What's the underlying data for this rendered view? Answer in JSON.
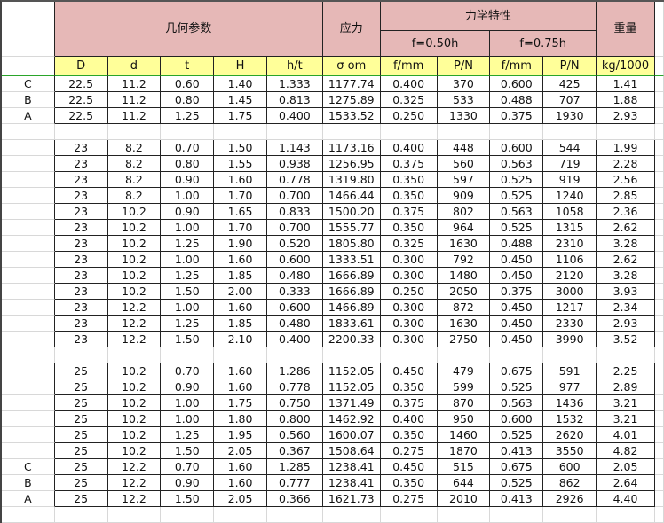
{
  "header": {
    "geometry": "几何参数",
    "stress": "应力",
    "mechanics": "力学特性",
    "f050": "f=0.50h",
    "f075": "f=0.75h",
    "weight": "重量"
  },
  "columns": [
    "D",
    "d",
    "t",
    "H",
    "h/t",
    "σ om",
    "f/mm",
    "P/N",
    "f/mm",
    "P/N",
    "kg/1000"
  ],
  "groups": [
    {
      "rows": [
        {
          "label": "C",
          "values": [
            "22.5",
            "11.2",
            "0.60",
            "1.40",
            "1.333",
            "1177.74",
            "0.400",
            "370",
            "0.600",
            "425",
            "1.41"
          ]
        },
        {
          "label": "B",
          "values": [
            "22.5",
            "11.2",
            "0.80",
            "1.45",
            "0.813",
            "1275.89",
            "0.325",
            "533",
            "0.488",
            "707",
            "1.88"
          ]
        },
        {
          "label": "A",
          "values": [
            "22.5",
            "11.2",
            "1.25",
            "1.75",
            "0.400",
            "1533.52",
            "0.250",
            "1330",
            "0.375",
            "1930",
            "2.93"
          ]
        }
      ]
    },
    {
      "rows": [
        {
          "label": "",
          "values": [
            "23",
            "8.2",
            "0.70",
            "1.50",
            "1.143",
            "1173.16",
            "0.400",
            "448",
            "0.600",
            "544",
            "1.99"
          ]
        },
        {
          "label": "",
          "values": [
            "23",
            "8.2",
            "0.80",
            "1.55",
            "0.938",
            "1256.95",
            "0.375",
            "560",
            "0.563",
            "719",
            "2.28"
          ]
        },
        {
          "label": "",
          "values": [
            "23",
            "8.2",
            "0.90",
            "1.60",
            "0.778",
            "1319.80",
            "0.350",
            "597",
            "0.525",
            "919",
            "2.56"
          ]
        },
        {
          "label": "",
          "values": [
            "23",
            "8.2",
            "1.00",
            "1.70",
            "0.700",
            "1466.44",
            "0.350",
            "909",
            "0.525",
            "1240",
            "2.85"
          ]
        },
        {
          "label": "",
          "values": [
            "23",
            "10.2",
            "0.90",
            "1.65",
            "0.833",
            "1500.20",
            "0.375",
            "802",
            "0.563",
            "1058",
            "2.36"
          ]
        },
        {
          "label": "",
          "values": [
            "23",
            "10.2",
            "1.00",
            "1.70",
            "0.700",
            "1555.77",
            "0.350",
            "964",
            "0.525",
            "1315",
            "2.62"
          ]
        },
        {
          "label": "",
          "values": [
            "23",
            "10.2",
            "1.25",
            "1.90",
            "0.520",
            "1805.80",
            "0.325",
            "1630",
            "0.488",
            "2310",
            "3.28"
          ]
        },
        {
          "label": "",
          "values": [
            "23",
            "10.2",
            "1.00",
            "1.60",
            "0.600",
            "1333.51",
            "0.300",
            "792",
            "0.450",
            "1106",
            "2.62"
          ]
        },
        {
          "label": "",
          "values": [
            "23",
            "10.2",
            "1.25",
            "1.85",
            "0.480",
            "1666.89",
            "0.300",
            "1480",
            "0.450",
            "2120",
            "3.28"
          ]
        },
        {
          "label": "",
          "values": [
            "23",
            "10.2",
            "1.50",
            "2.00",
            "0.333",
            "1666.89",
            "0.250",
            "2050",
            "0.375",
            "3000",
            "3.93"
          ]
        },
        {
          "label": "",
          "values": [
            "23",
            "12.2",
            "1.00",
            "1.60",
            "0.600",
            "1466.89",
            "0.300",
            "872",
            "0.450",
            "1217",
            "2.34"
          ]
        },
        {
          "label": "",
          "values": [
            "23",
            "12.2",
            "1.25",
            "1.85",
            "0.480",
            "1833.61",
            "0.300",
            "1630",
            "0.450",
            "2330",
            "2.93"
          ]
        },
        {
          "label": "",
          "values": [
            "23",
            "12.2",
            "1.50",
            "2.10",
            "0.400",
            "2200.33",
            "0.300",
            "2750",
            "0.450",
            "3990",
            "3.52"
          ]
        }
      ]
    },
    {
      "rows": [
        {
          "label": "",
          "values": [
            "25",
            "10.2",
            "0.70",
            "1.60",
            "1.286",
            "1152.05",
            "0.450",
            "479",
            "0.675",
            "591",
            "2.25"
          ]
        },
        {
          "label": "",
          "values": [
            "25",
            "10.2",
            "0.90",
            "1.60",
            "0.778",
            "1152.05",
            "0.350",
            "599",
            "0.525",
            "977",
            "2.89"
          ]
        },
        {
          "label": "",
          "values": [
            "25",
            "10.2",
            "1.00",
            "1.75",
            "0.750",
            "1371.49",
            "0.375",
            "870",
            "0.563",
            "1436",
            "3.21"
          ]
        },
        {
          "label": "",
          "values": [
            "25",
            "10.2",
            "1.00",
            "1.80",
            "0.800",
            "1462.92",
            "0.400",
            "950",
            "0.600",
            "1532",
            "3.21"
          ]
        },
        {
          "label": "",
          "values": [
            "25",
            "10.2",
            "1.25",
            "1.95",
            "0.560",
            "1600.07",
            "0.350",
            "1460",
            "0.525",
            "2620",
            "4.01"
          ]
        },
        {
          "label": "",
          "values": [
            "25",
            "10.2",
            "1.50",
            "2.05",
            "0.367",
            "1508.64",
            "0.275",
            "1870",
            "0.413",
            "3550",
            "4.82"
          ]
        },
        {
          "label": "C",
          "values": [
            "25",
            "12.2",
            "0.70",
            "1.60",
            "1.285",
            "1238.41",
            "0.450",
            "515",
            "0.675",
            "600",
            "2.05"
          ]
        },
        {
          "label": "B",
          "values": [
            "25",
            "12.2",
            "0.90",
            "1.60",
            "0.777",
            "1238.41",
            "0.350",
            "644",
            "0.525",
            "862",
            "2.64"
          ]
        },
        {
          "label": "A",
          "values": [
            "25",
            "12.2",
            "1.50",
            "2.05",
            "0.366",
            "1621.73",
            "0.275",
            "2010",
            "0.413",
            "2926",
            "4.40"
          ]
        }
      ]
    }
  ],
  "colors": {
    "header_pink": "#e6b8b7",
    "subheader_yellow": "#ffff99",
    "freeze_line": "#2aa52a"
  }
}
